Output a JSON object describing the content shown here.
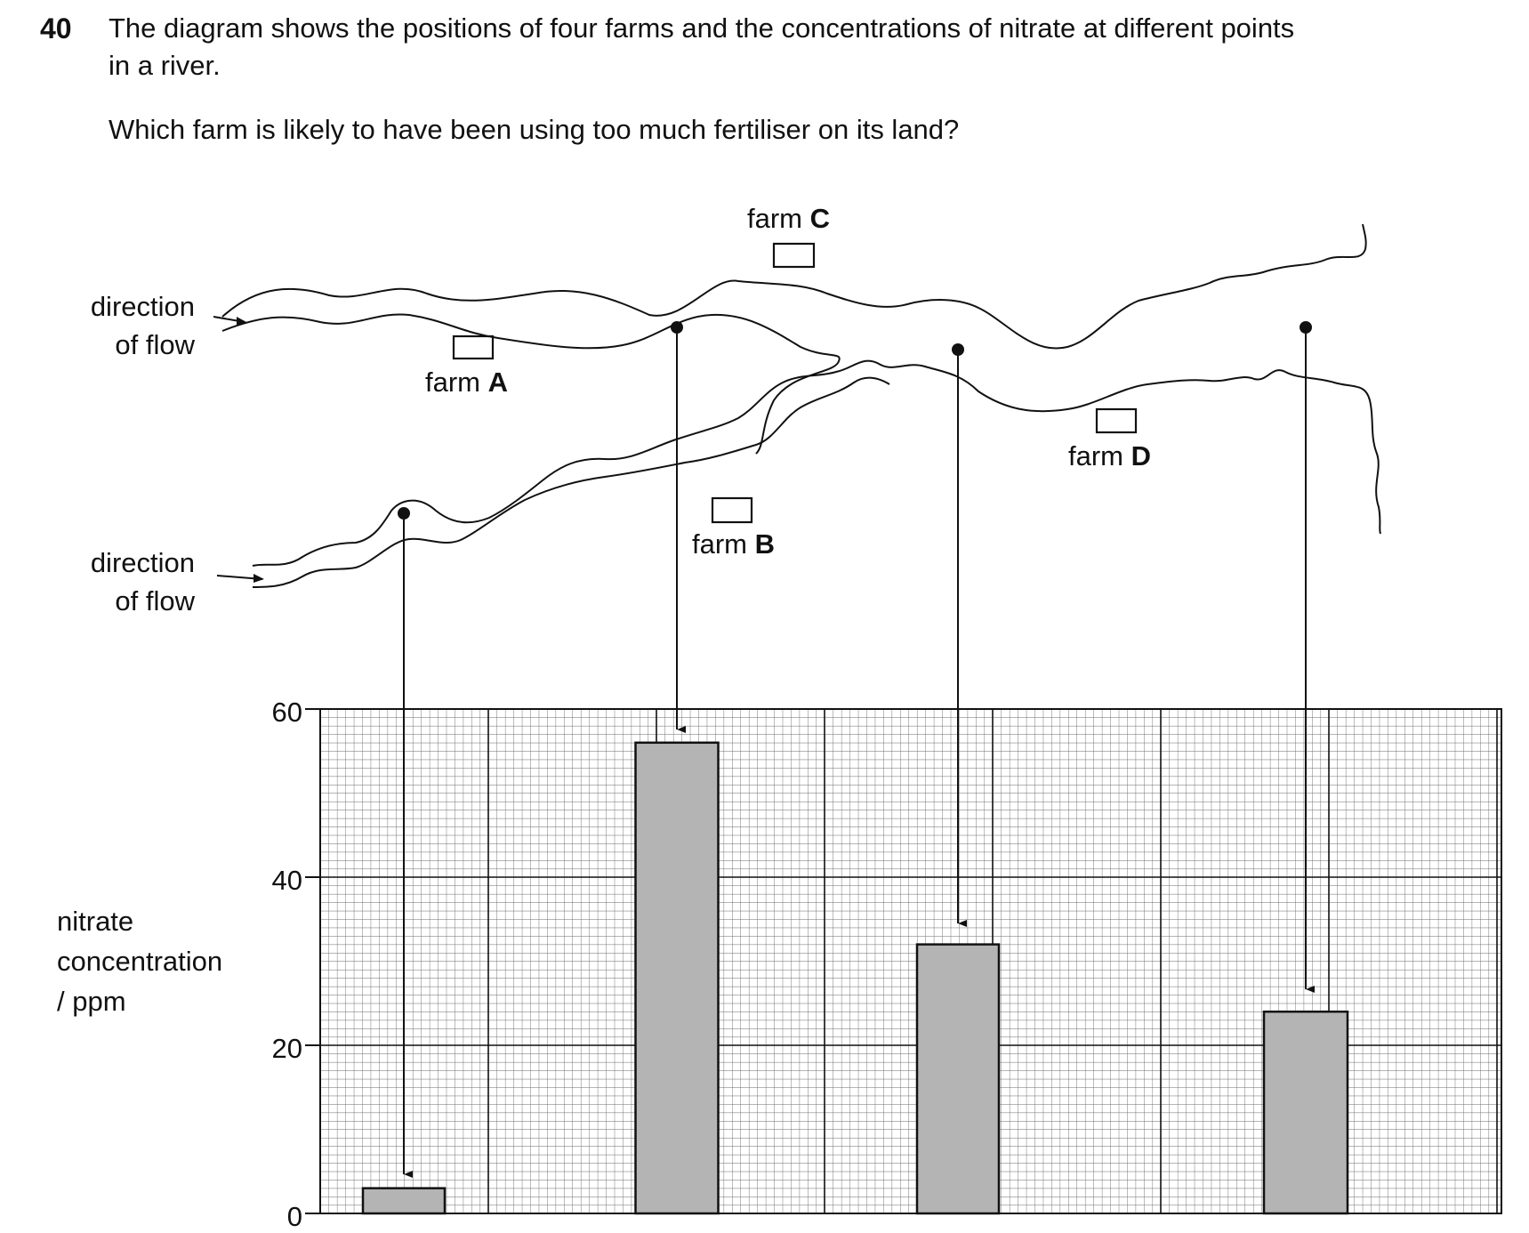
{
  "question": {
    "number": "40",
    "line1": "The diagram shows the positions of four farms and the concentrations of nitrate at different points",
    "line2": "in a river.",
    "prompt": "Which farm is likely to have been using too much fertiliser on its land?"
  },
  "diagram": {
    "flow_label_top": [
      "direction",
      "of flow"
    ],
    "flow_label_bottom": [
      "direction",
      "of flow"
    ],
    "farms": [
      {
        "word": "farm",
        "letter": "A"
      },
      {
        "word": "farm",
        "letter": "B"
      },
      {
        "word": "farm",
        "letter": "C"
      },
      {
        "word": "farm",
        "letter": "D"
      }
    ]
  },
  "chart_data": {
    "type": "bar",
    "ylabel": [
      "nitrate",
      "concentration",
      "/ ppm"
    ],
    "ylim": [
      0,
      60
    ],
    "yticks": [
      "0",
      "20",
      "40",
      "60"
    ],
    "grid": true,
    "values": [
      3,
      56,
      32,
      24
    ]
  },
  "colors": {
    "bar_fill": "#b4b4b4",
    "ink": "#111111"
  }
}
